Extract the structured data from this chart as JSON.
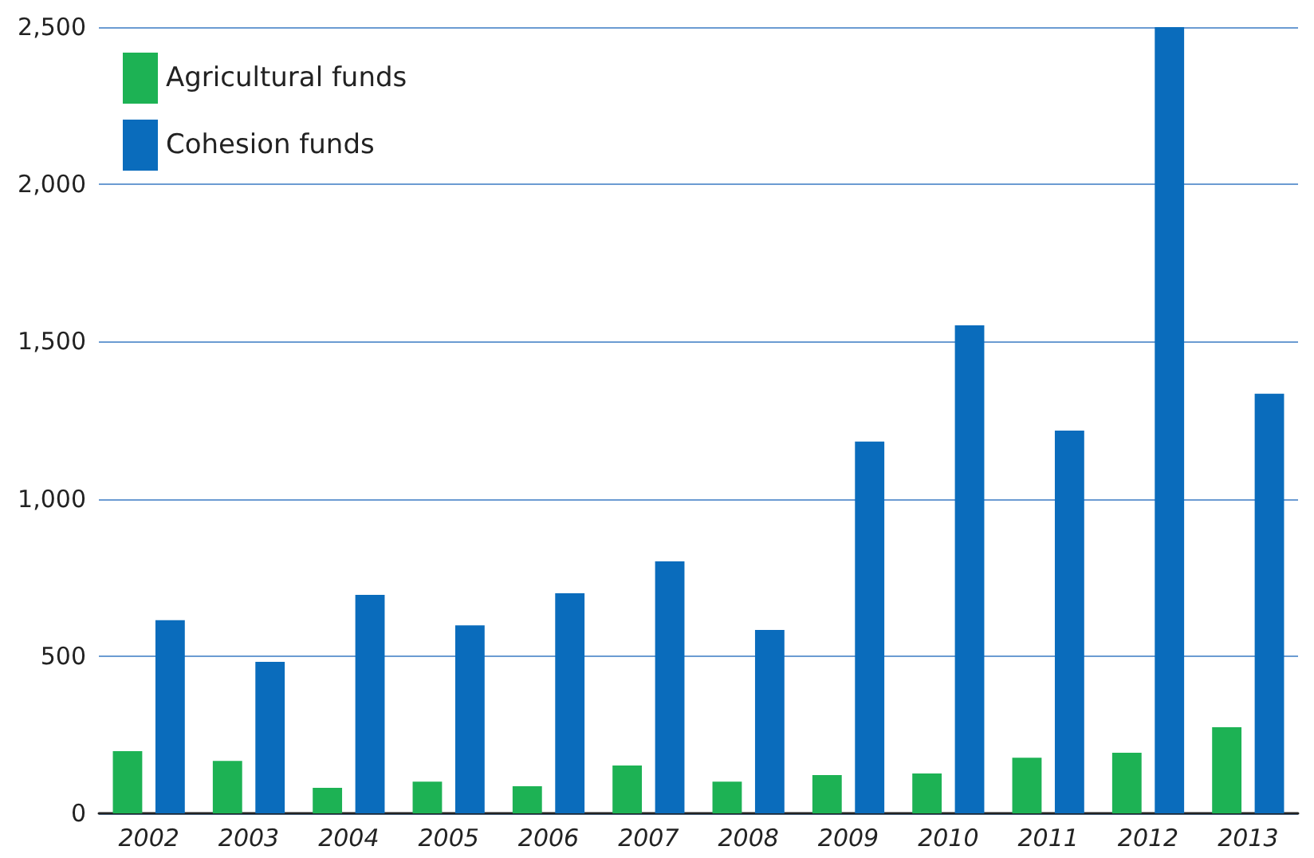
{
  "chart_data": {
    "type": "bar",
    "categories": [
      "2002",
      "2003",
      "2004",
      "2005",
      "2006",
      "2007",
      "2008",
      "2009",
      "2010",
      "2011",
      "2012",
      "2013"
    ],
    "series": [
      {
        "name": "Agricultural funds",
        "color": "#1db254",
        "values": [
          198,
          167,
          81,
          101,
          86,
          152,
          101,
          122,
          127,
          177,
          193,
          274
        ]
      },
      {
        "name": "Cohesion funds",
        "color": "#0a6cbc",
        "values": [
          614,
          482,
          695,
          598,
          700,
          801,
          583,
          1182,
          1552,
          1217,
          2500,
          1334
        ]
      }
    ],
    "ylim": [
      0,
      2500
    ],
    "yticks": [
      0,
      {
        "value": 500,
        "label": "500"
      },
      {
        "value": 1000,
        "label": "1,000"
      },
      {
        "value": 1500,
        "label": "1,500"
      },
      {
        "value": 2000,
        "label": "2,000"
      },
      {
        "value": 2500,
        "label": "2,500"
      }
    ],
    "grid": "y",
    "legend": "top left"
  }
}
